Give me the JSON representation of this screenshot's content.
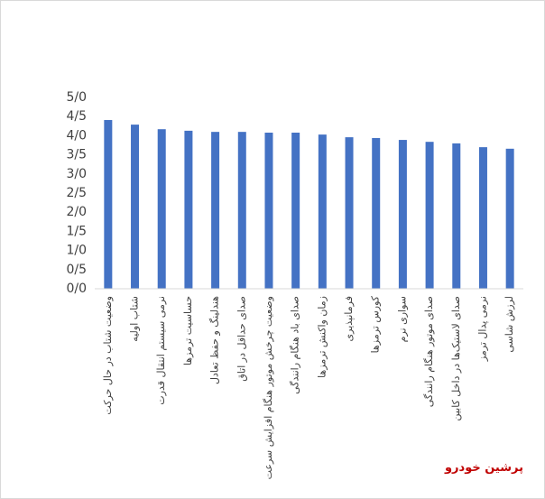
{
  "chart_data": {
    "type": "bar",
    "categories": [
      "وضعیت شتاب در حال حرکت",
      "شتاب اولیه",
      "نرمی سیستم انتقال قدرت",
      "حساسیت ترمزها",
      "هندلینگ و حفظ تعادل",
      "صدای حداقل در اتاق",
      "وضعیت چرخش موتور هنگام افزایش سرعت",
      "صدای باد هنگام رانندگی",
      "زمان واکنش ترمزها",
      "فرمانپذیری",
      "کورس ترمزها",
      "سواری نرم",
      "صدای موتور هنگام رانندگی",
      "صدای لاستیک‌ها در داخل کابین",
      "نرمی پدال ترمز",
      "لرزش شاسی"
    ],
    "values": [
      4.41,
      4.29,
      4.17,
      4.13,
      4.1,
      4.1,
      4.08,
      4.08,
      4.03,
      3.96,
      3.94,
      3.89,
      3.84,
      3.8,
      3.7,
      3.66
    ],
    "color": "#4472c4",
    "ylim": [
      0,
      5
    ],
    "yticks": [
      {
        "value": 0,
        "label": "0/0"
      },
      {
        "value": 0.5,
        "label": "0/5"
      },
      {
        "value": 1,
        "label": "1/0"
      },
      {
        "value": 1.5,
        "label": "1/5"
      },
      {
        "value": 2,
        "label": "2/0"
      },
      {
        "value": 2.5,
        "label": "2/5"
      },
      {
        "value": 3,
        "label": "3/0"
      },
      {
        "value": 3.5,
        "label": "3/5"
      },
      {
        "value": 4,
        "label": "4/0"
      },
      {
        "value": 4.5,
        "label": "4/5"
      },
      {
        "value": 5,
        "label": "5/0"
      }
    ],
    "grid": false,
    "watermark": "پرشین خودرو"
  }
}
